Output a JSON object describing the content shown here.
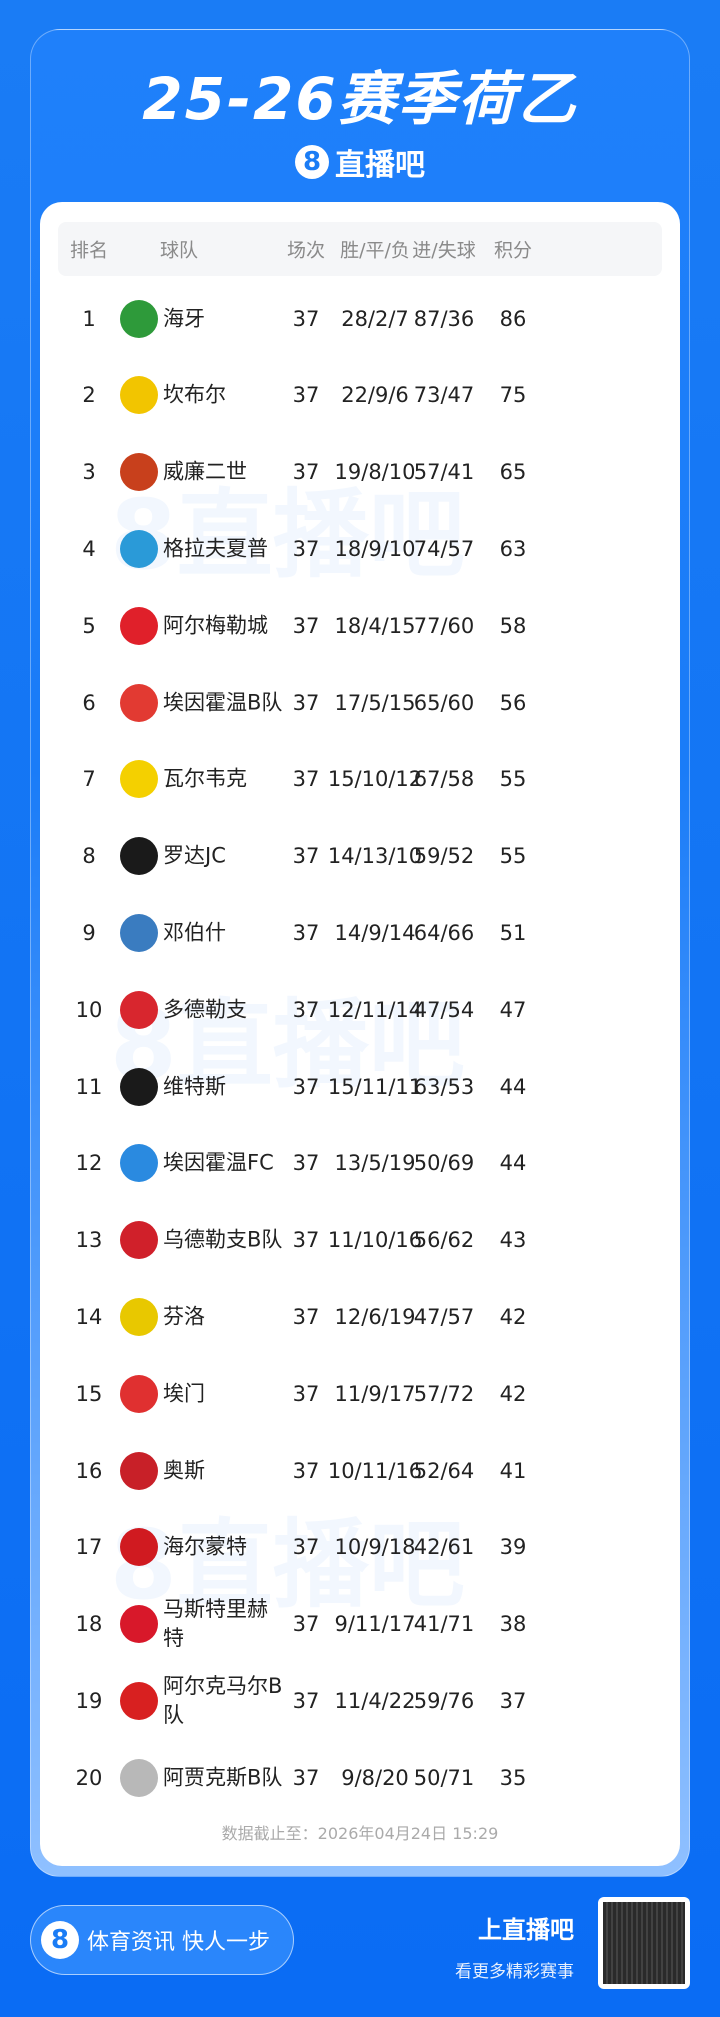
{
  "title": "25-26赛季荷乙",
  "brand": {
    "logo": "8",
    "name": "直播吧"
  },
  "watermark": "8直播吧",
  "table": {
    "headers": {
      "rank": "排名",
      "team": "球队",
      "played": "场次",
      "wdl": "胜/平/负",
      "goals": "进/失球",
      "points": "积分"
    },
    "rows": [
      {
        "rank": "1",
        "team": "海牙",
        "played": "37",
        "wdl": "28/2/7",
        "goals": "87/36",
        "points": "86",
        "color": "#2e9a3a"
      },
      {
        "rank": "2",
        "team": "坎布尔",
        "played": "37",
        "wdl": "22/9/6",
        "goals": "73/47",
        "points": "75",
        "color": "#f2c500"
      },
      {
        "rank": "3",
        "team": "威廉二世",
        "played": "37",
        "wdl": "19/8/10",
        "goals": "57/41",
        "points": "65",
        "color": "#c8401c"
      },
      {
        "rank": "4",
        "team": "格拉夫夏普",
        "played": "37",
        "wdl": "18/9/10",
        "goals": "74/57",
        "points": "63",
        "color": "#2a9ad8"
      },
      {
        "rank": "5",
        "team": "阿尔梅勒城",
        "played": "37",
        "wdl": "18/4/15",
        "goals": "77/60",
        "points": "58",
        "color": "#e0202a"
      },
      {
        "rank": "6",
        "team": "埃因霍温B队",
        "played": "37",
        "wdl": "17/5/15",
        "goals": "65/60",
        "points": "56",
        "color": "#e23a32"
      },
      {
        "rank": "7",
        "team": "瓦尔韦克",
        "played": "37",
        "wdl": "15/10/12",
        "goals": "67/58",
        "points": "55",
        "color": "#f4d000"
      },
      {
        "rank": "8",
        "team": "罗达JC",
        "played": "37",
        "wdl": "14/13/10",
        "goals": "59/52",
        "points": "55",
        "color": "#1a1a1a"
      },
      {
        "rank": "9",
        "team": "邓伯什",
        "played": "37",
        "wdl": "14/9/14",
        "goals": "64/66",
        "points": "51",
        "color": "#3a7cc0"
      },
      {
        "rank": "10",
        "team": "多德勒支",
        "played": "37",
        "wdl": "12/11/14",
        "goals": "47/54",
        "points": "47",
        "color": "#d8262e"
      },
      {
        "rank": "11",
        "team": "维特斯",
        "played": "37",
        "wdl": "15/11/11",
        "goals": "63/53",
        "points": "44",
        "color": "#1a1a1a"
      },
      {
        "rank": "12",
        "team": "埃因霍温FC",
        "played": "37",
        "wdl": "13/5/19",
        "goals": "50/69",
        "points": "44",
        "color": "#2a8ae0"
      },
      {
        "rank": "13",
        "team": "乌德勒支B队",
        "played": "37",
        "wdl": "11/10/16",
        "goals": "56/62",
        "points": "43",
        "color": "#d0202a"
      },
      {
        "rank": "14",
        "team": "芬洛",
        "played": "37",
        "wdl": "12/6/19",
        "goals": "47/57",
        "points": "42",
        "color": "#e8c800"
      },
      {
        "rank": "15",
        "team": "埃门",
        "played": "37",
        "wdl": "11/9/17",
        "goals": "57/72",
        "points": "42",
        "color": "#e03030"
      },
      {
        "rank": "16",
        "team": "奥斯",
        "played": "37",
        "wdl": "10/11/16",
        "goals": "52/64",
        "points": "41",
        "color": "#c82028"
      },
      {
        "rank": "17",
        "team": "海尔蒙特",
        "played": "37",
        "wdl": "10/9/18",
        "goals": "42/61",
        "points": "39",
        "color": "#d01a20"
      },
      {
        "rank": "18",
        "team": "马斯特里赫特",
        "played": "37",
        "wdl": "9/11/17",
        "goals": "41/71",
        "points": "38",
        "color": "#d8182a"
      },
      {
        "rank": "19",
        "team": "阿尔克马尔B队",
        "played": "37",
        "wdl": "11/4/22",
        "goals": "59/76",
        "points": "37",
        "color": "#d82020"
      },
      {
        "rank": "20",
        "team": "阿贾克斯B队",
        "played": "37",
        "wdl": "9/8/20",
        "goals": "50/71",
        "points": "35",
        "color": "#b8b8b8"
      }
    ]
  },
  "footer_note": "数据截止至：2026年04月24日 15:29",
  "bottom": {
    "slogan": "体育资讯 快人一步",
    "cta_title": "上直播吧",
    "cta_sub": "看更多精彩赛事"
  }
}
